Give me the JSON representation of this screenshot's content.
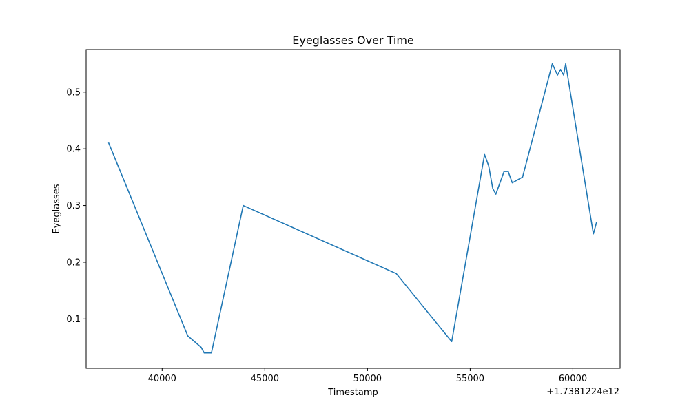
{
  "chart_data": {
    "type": "line",
    "title": "Eyeglasses Over Time",
    "xlabel": "Timestamp",
    "ylabel": "Eyeglasses",
    "x_offset_label": "+1.7381224e12",
    "xlim": [
      36300,
      62300
    ],
    "ylim": [
      0.013,
      0.575
    ],
    "x_ticks": [
      40000,
      45000,
      50000,
      55000,
      60000
    ],
    "y_ticks": [
      0.1,
      0.2,
      0.3,
      0.4,
      0.5
    ],
    "x_tick_labels": [
      "40000",
      "45000",
      "50000",
      "55000",
      "60000"
    ],
    "y_tick_labels": [
      "0.1",
      "0.2",
      "0.3",
      "0.4",
      "0.5"
    ],
    "grid": false,
    "series": [
      {
        "color": "#1f77b4",
        "points": [
          [
            37400,
            0.41
          ],
          [
            41250,
            0.07
          ],
          [
            41900,
            0.05
          ],
          [
            42050,
            0.04
          ],
          [
            42400,
            0.04
          ],
          [
            43950,
            0.3
          ],
          [
            51400,
            0.18
          ],
          [
            54100,
            0.06
          ],
          [
            55700,
            0.39
          ],
          [
            55900,
            0.37
          ],
          [
            56100,
            0.33
          ],
          [
            56250,
            0.32
          ],
          [
            56650,
            0.36
          ],
          [
            56850,
            0.36
          ],
          [
            57050,
            0.34
          ],
          [
            57550,
            0.35
          ],
          [
            59000,
            0.55
          ],
          [
            59250,
            0.53
          ],
          [
            59400,
            0.54
          ],
          [
            59550,
            0.53
          ],
          [
            59650,
            0.55
          ],
          [
            61000,
            0.25
          ],
          [
            61150,
            0.27
          ]
        ]
      }
    ]
  }
}
